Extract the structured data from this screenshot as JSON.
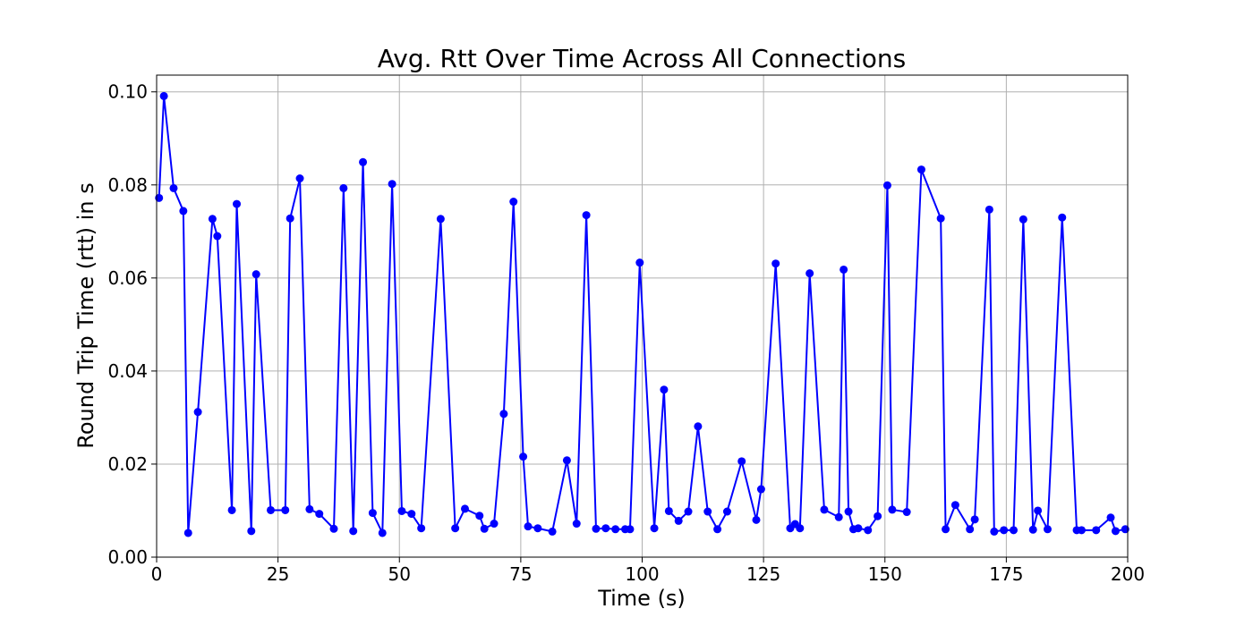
{
  "chart_data": {
    "type": "line",
    "title": "Avg. Rtt Over Time Across All Connections",
    "xlabel": "Time (s)",
    "ylabel": "Round Trip Time (rtt) in s",
    "xlim": [
      0,
      200
    ],
    "ylim": [
      0,
      0.1036
    ],
    "xticks": [
      0,
      25,
      50,
      75,
      100,
      125,
      150,
      175,
      200
    ],
    "xtick_labels": [
      "0",
      "25",
      "50",
      "75",
      "100",
      "125",
      "150",
      "175",
      "200"
    ],
    "yticks": [
      0,
      0.02,
      0.04,
      0.06,
      0.08,
      0.1
    ],
    "ytick_labels": [
      "0.00",
      "0.02",
      "0.04",
      "0.06",
      "0.08",
      "0.10"
    ],
    "grid": true,
    "series": [
      {
        "color": "#0000ff",
        "marker": "circle",
        "points": [
          [
            0.5,
            0.0772
          ],
          [
            1.5,
            0.0991
          ],
          [
            3.5,
            0.0793
          ],
          [
            5.5,
            0.0744
          ],
          [
            6.5,
            0.0052
          ],
          [
            8.5,
            0.0312
          ],
          [
            11.5,
            0.0727
          ],
          [
            12.5,
            0.069
          ],
          [
            15.5,
            0.0101
          ],
          [
            16.5,
            0.0759
          ],
          [
            19.5,
            0.0056
          ],
          [
            20.5,
            0.0608
          ],
          [
            23.5,
            0.0101
          ],
          [
            26.5,
            0.0101
          ],
          [
            27.5,
            0.0728
          ],
          [
            29.5,
            0.0814
          ],
          [
            31.5,
            0.0103
          ],
          [
            33.5,
            0.0093
          ],
          [
            36.5,
            0.0061
          ],
          [
            38.5,
            0.0793
          ],
          [
            40.5,
            0.0056
          ],
          [
            42.5,
            0.0849
          ],
          [
            44.5,
            0.0095
          ],
          [
            46.5,
            0.0052
          ],
          [
            48.5,
            0.0802
          ],
          [
            50.5,
            0.0099
          ],
          [
            52.5,
            0.0093
          ],
          [
            54.5,
            0.0062
          ],
          [
            58.5,
            0.0727
          ],
          [
            61.5,
            0.0062
          ],
          [
            63.5,
            0.0104
          ],
          [
            66.5,
            0.0089
          ],
          [
            67.5,
            0.0061
          ],
          [
            69.5,
            0.0072
          ],
          [
            71.5,
            0.0308
          ],
          [
            73.5,
            0.0764
          ],
          [
            75.5,
            0.0216
          ],
          [
            76.5,
            0.0066
          ],
          [
            78.5,
            0.0062
          ],
          [
            81.5,
            0.0055
          ],
          [
            84.5,
            0.0208
          ],
          [
            86.5,
            0.0072
          ],
          [
            88.5,
            0.0735
          ],
          [
            90.5,
            0.0061
          ],
          [
            92.5,
            0.0062
          ],
          [
            94.5,
            0.006
          ],
          [
            96.5,
            0.006
          ],
          [
            97.5,
            0.006
          ],
          [
            99.5,
            0.0633
          ],
          [
            102.5,
            0.0062
          ],
          [
            104.5,
            0.036
          ],
          [
            105.5,
            0.0099
          ],
          [
            107.5,
            0.0078
          ],
          [
            109.5,
            0.0098
          ],
          [
            111.5,
            0.0281
          ],
          [
            113.5,
            0.0098
          ],
          [
            115.5,
            0.006
          ],
          [
            117.5,
            0.0098
          ],
          [
            120.5,
            0.0206
          ],
          [
            123.5,
            0.008
          ],
          [
            124.5,
            0.0146
          ],
          [
            127.5,
            0.0631
          ],
          [
            130.5,
            0.0062
          ],
          [
            131.5,
            0.0071
          ],
          [
            132.5,
            0.0062
          ],
          [
            134.5,
            0.061
          ],
          [
            137.5,
            0.0102
          ],
          [
            140.5,
            0.0086
          ],
          [
            141.5,
            0.0618
          ],
          [
            142.5,
            0.0098
          ],
          [
            143.5,
            0.006
          ],
          [
            144.5,
            0.0062
          ],
          [
            146.5,
            0.0058
          ],
          [
            148.5,
            0.0088
          ],
          [
            150.5,
            0.0799
          ],
          [
            151.5,
            0.0102
          ],
          [
            154.5,
            0.0097
          ],
          [
            157.5,
            0.0833
          ],
          [
            161.5,
            0.0728
          ],
          [
            162.5,
            0.006
          ],
          [
            164.5,
            0.0112
          ],
          [
            167.5,
            0.006
          ],
          [
            168.5,
            0.0081
          ],
          [
            171.5,
            0.0747
          ],
          [
            172.5,
            0.0055
          ],
          [
            174.5,
            0.0058
          ],
          [
            176.5,
            0.0058
          ],
          [
            178.5,
            0.0726
          ],
          [
            180.5,
            0.0059
          ],
          [
            181.5,
            0.01
          ],
          [
            183.5,
            0.006
          ],
          [
            186.5,
            0.073
          ],
          [
            189.5,
            0.0058
          ],
          [
            190.5,
            0.0058
          ],
          [
            193.5,
            0.0058
          ],
          [
            196.5,
            0.0085
          ],
          [
            197.5,
            0.0056
          ],
          [
            199.5,
            0.006
          ]
        ]
      }
    ]
  }
}
